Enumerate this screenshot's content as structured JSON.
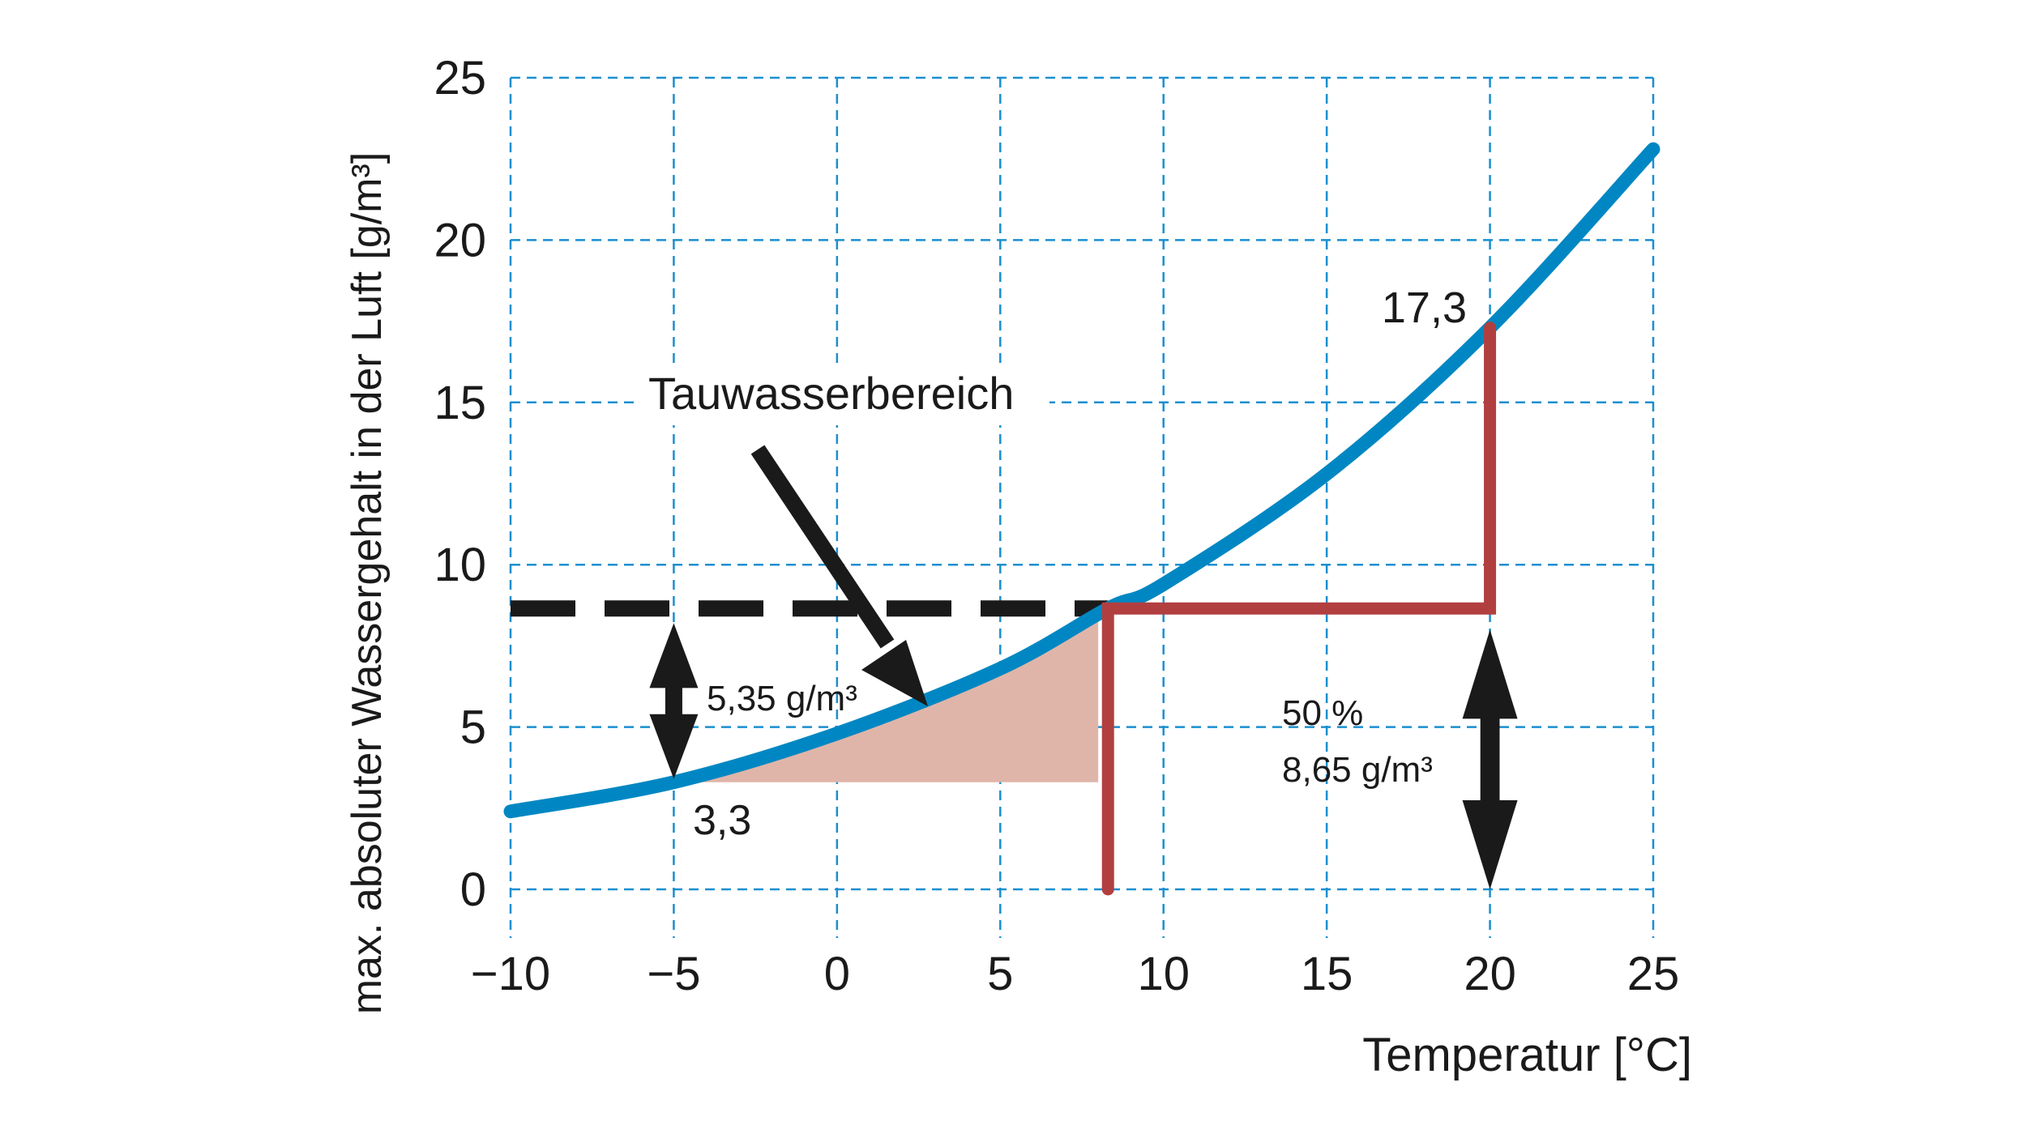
{
  "chart_data": {
    "type": "line",
    "xlabel": "Temperatur [°C]",
    "ylabel": "max. absoluter Wassergehalt in der Luft [g/m³]",
    "xlim": [
      -10,
      25
    ],
    "ylim": [
      0,
      25
    ],
    "xticks": [
      "-10",
      "-5",
      "0",
      "5",
      "10",
      "15",
      "20",
      "25"
    ],
    "yticks": [
      "0",
      "5",
      "10",
      "15",
      "20",
      "25"
    ],
    "grid": true,
    "series": [
      {
        "x": [
          -10,
          -5,
          0,
          5,
          8.3,
          10,
          15,
          20,
          25
        ],
        "y": [
          2.4,
          3.3,
          4.8,
          6.8,
          8.65,
          9.4,
          12.8,
          17.3,
          22.8
        ],
        "color": "#0087c3"
      }
    ],
    "red_path": {
      "points": [
        [
          8.3,
          0
        ],
        [
          8.3,
          8.65
        ],
        [
          20,
          8.65
        ],
        [
          20,
          17.3
        ]
      ],
      "color": "#b23f40"
    },
    "dashed_level": {
      "y": 8.65,
      "x_from": -10,
      "x_to": 8.3,
      "color": "#1a1a1a"
    },
    "shaded_region": {
      "color": "#e0b5a9",
      "y_floor": 3.3,
      "x_from": -5,
      "x_to": 8
    },
    "annotations": {
      "region_label": "Tauwasserbereich",
      "value_high": "17,3",
      "value_low": "3,3",
      "difference": "5,35 g/m³",
      "humidity": "50 %",
      "humidity_content": "8,65 g/m³"
    },
    "grid_color": "#1a8fd0"
  }
}
